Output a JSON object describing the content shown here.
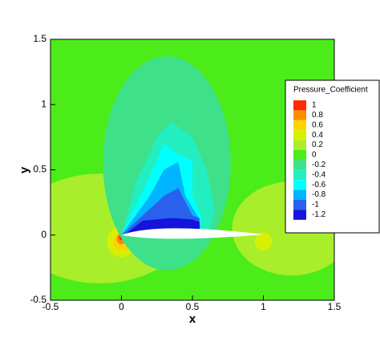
{
  "chart_data": {
    "type": "contour",
    "xlabel": "x",
    "ylabel": "y",
    "xlim": [
      -0.5,
      1.5
    ],
    "ylim": [
      -0.5,
      1.5
    ],
    "xticks": [
      -0.5,
      0,
      0.5,
      1,
      1.5
    ],
    "yticks": [
      -0.5,
      0,
      0.5,
      1,
      1.5
    ],
    "legend": {
      "title": "Pressure_Coefficient",
      "position": "right",
      "levels": [
        1,
        0.8,
        0.6,
        0.4,
        0.2,
        0,
        -0.2,
        -0.4,
        -0.6,
        -0.8,
        -1,
        -1.2
      ],
      "colors": [
        "#ff2a00",
        "#ff8c00",
        "#ffd200",
        "#d8f000",
        "#a8ee2a",
        "#4cec1a",
        "#3ee08a",
        "#22eec0",
        "#00ffff",
        "#00b4ff",
        "#2a60ee",
        "#1414dc"
      ]
    }
  }
}
